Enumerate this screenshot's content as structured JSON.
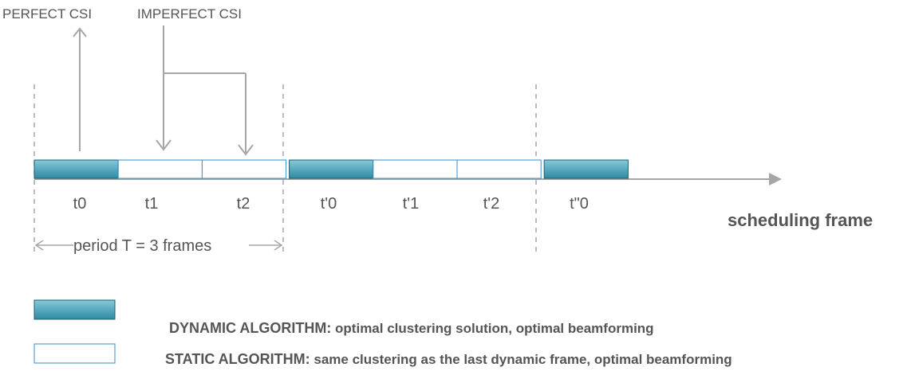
{
  "top_labels": {
    "perfect_csi": "PERFECT CSI",
    "imperfect_csi": "IMPERFECT CSI"
  },
  "frames": [
    "t0",
    "t1",
    "t2",
    "t'0",
    "t'1",
    "t'2",
    "t\"0"
  ],
  "frame_kinds": [
    "dynamic",
    "static",
    "static",
    "dynamic",
    "static",
    "static",
    "dynamic"
  ],
  "period_label": "period T = 3 frames",
  "axis_label": "scheduling frame",
  "legend": {
    "dynamic": {
      "title": "DYNAMIC ALGORITHM:",
      "description": " optimal clustering solution, optimal beamforming"
    },
    "static": {
      "title": "STATIC ALGORITHM:",
      "description": " same clustering as the last dynamic frame, optimal beamforming"
    }
  },
  "colors": {
    "dynamic_fill_top": "#7ec3d3",
    "dynamic_fill_bottom": "#2f8ea8",
    "dynamic_stroke": "#1c5f72",
    "static_stroke": "#3a8fc4",
    "line": "#a6a6a6",
    "text": "#555555"
  }
}
